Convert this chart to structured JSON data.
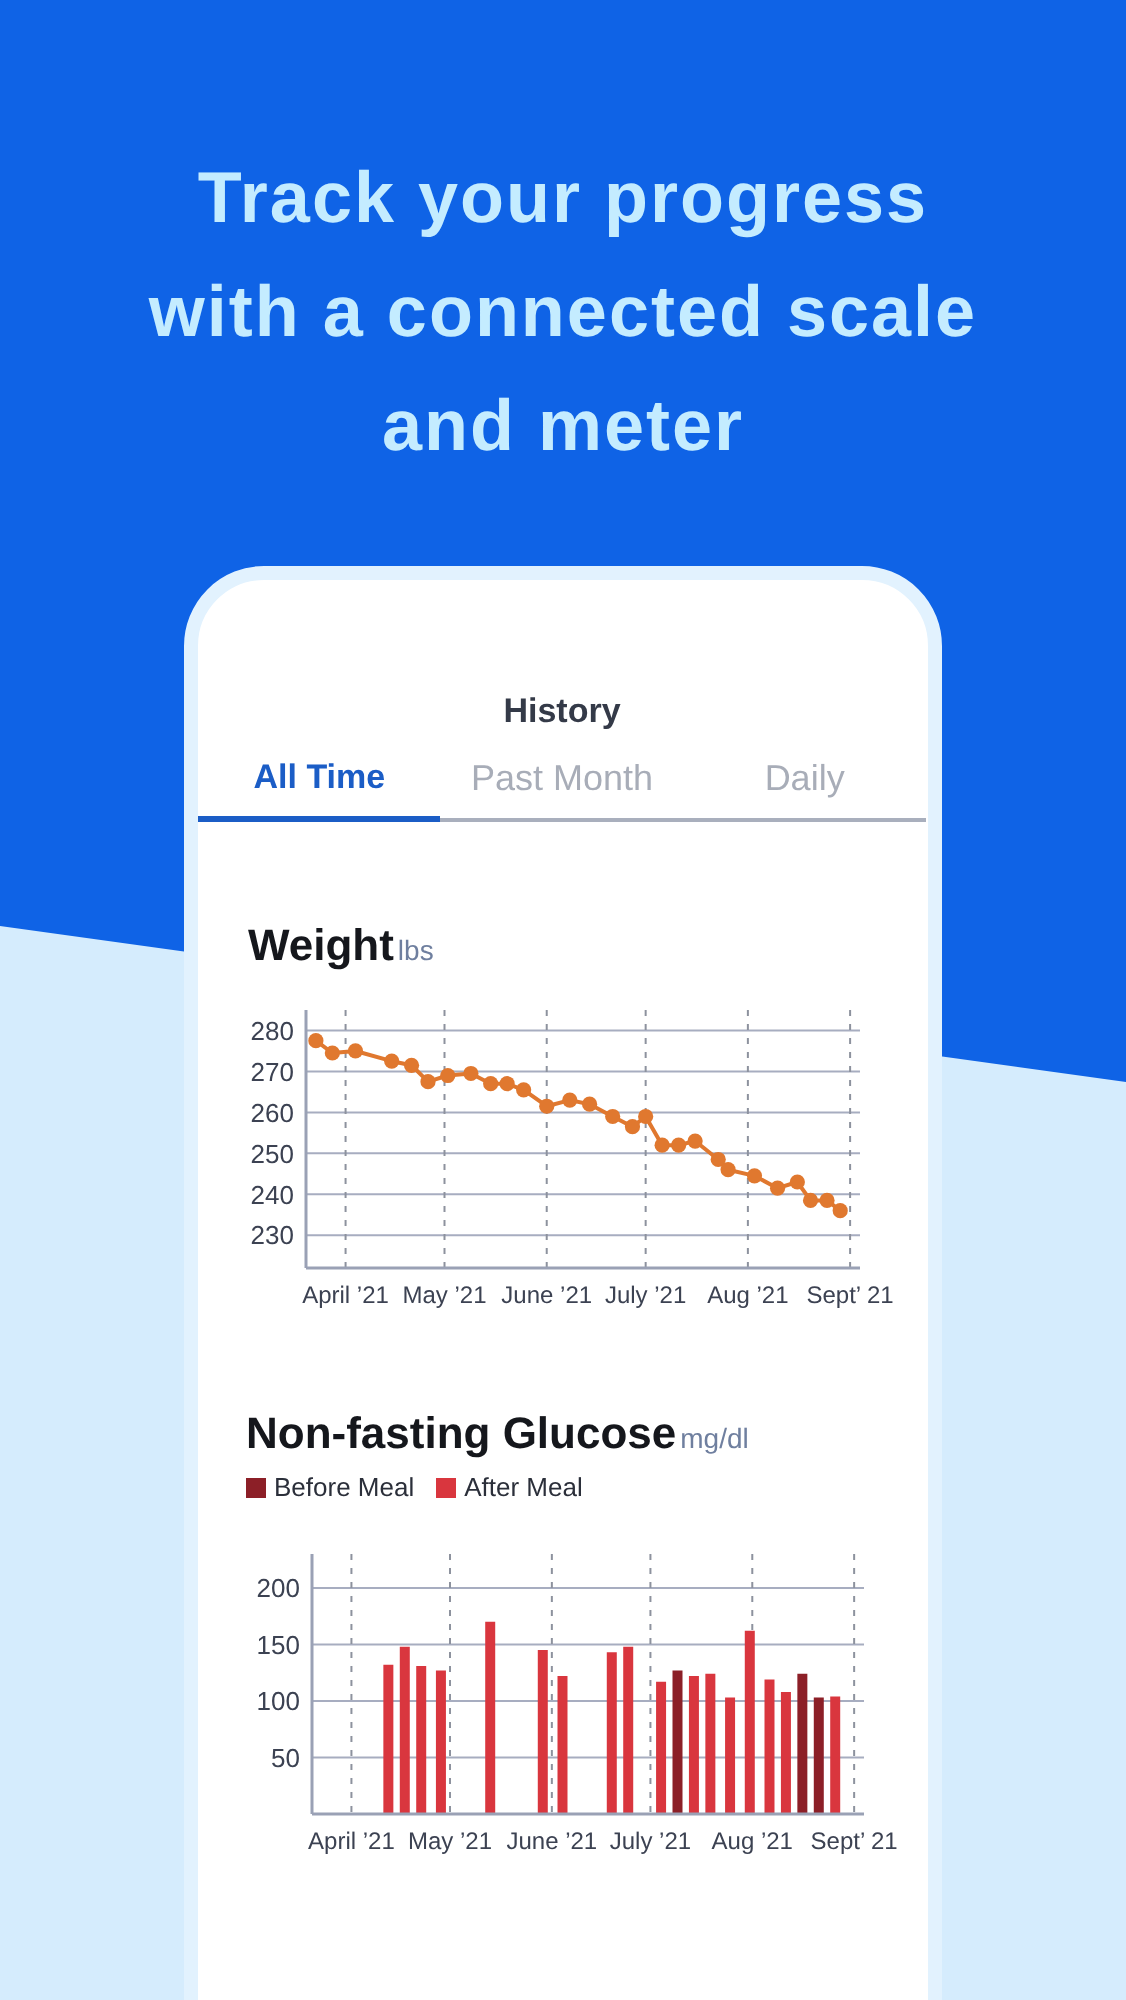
{
  "chart_data": [
    {
      "type": "line",
      "title": "Weight",
      "ylabel": "lbs",
      "annotations": [
        "Track your progress with a connected scale and meter",
        "History",
        "All Time",
        "Past Month",
        "Daily"
      ],
      "x": [
        "2021-03-23",
        "2021-03-28",
        "2021-04-04",
        "2021-04-15",
        "2021-04-21",
        "2021-04-26",
        "2021-05-02",
        "2021-05-09",
        "2021-05-15",
        "2021-05-20",
        "2021-05-25",
        "2021-06-01",
        "2021-06-08",
        "2021-06-14",
        "2021-06-21",
        "2021-06-27",
        "2021-07-01",
        "2021-07-06",
        "2021-07-11",
        "2021-07-16",
        "2021-07-23",
        "2021-07-26",
        "2021-08-03",
        "2021-08-10",
        "2021-08-16",
        "2021-08-20",
        "2021-08-25",
        "2021-08-29"
      ],
      "series": [
        {
          "color": "#e0782f",
          "values": [
            277.5,
            274.5,
            275,
            272.5,
            271.5,
            267.5,
            269,
            269.5,
            267,
            267,
            265.5,
            261.5,
            263,
            262,
            259,
            256.5,
            259,
            252,
            252,
            253,
            248.5,
            246,
            244.5,
            241.5,
            243,
            238.5,
            238.5,
            236
          ]
        }
      ],
      "xlim": [
        "2021-03-20",
        "2021-09-04"
      ],
      "ylim": [
        222,
        285
      ],
      "xticks": [
        {
          "value": "2021-04-01",
          "label": "April ’21"
        },
        {
          "value": "2021-05-01",
          "label": "May ’21"
        },
        {
          "value": "2021-06-01",
          "label": "June ’21"
        },
        {
          "value": "2021-07-01",
          "label": "July ’21"
        },
        {
          "value": "2021-08-01",
          "label": "Aug ’21"
        },
        {
          "value": "2021-09-01",
          "label": "Sept’ 21"
        }
      ],
      "yticks": [
        230,
        240,
        250,
        260,
        270,
        280
      ],
      "grid": true,
      "marker": "circle",
      "line_style": "solid"
    },
    {
      "type": "bar",
      "title": "Non-fasting Glucose",
      "ylabel": "mg/dl",
      "x": [
        "2021-04-12",
        "2021-04-17",
        "2021-04-22",
        "2021-04-28",
        "2021-05-13",
        "2021-05-29",
        "2021-06-04",
        "2021-06-19",
        "2021-06-24",
        "2021-07-04",
        "2021-07-09",
        "2021-07-14",
        "2021-07-19",
        "2021-07-25",
        "2021-07-31",
        "2021-08-06",
        "2021-08-11",
        "2021-08-16",
        "2021-08-21",
        "2021-08-26"
      ],
      "series": [
        {
          "name": "Before Meal",
          "color": "#8c1f27",
          "values": [
            null,
            null,
            null,
            null,
            null,
            null,
            null,
            null,
            null,
            null,
            127,
            null,
            null,
            null,
            null,
            null,
            null,
            124,
            103,
            null
          ]
        },
        {
          "name": "After Meal",
          "color": "#d9363e",
          "values": [
            132,
            148,
            131,
            127,
            170,
            145,
            122,
            143,
            148,
            117,
            null,
            122,
            124,
            103,
            162,
            119,
            108,
            null,
            null,
            104
          ]
        }
      ],
      "xlim": [
        "2021-03-20",
        "2021-09-04"
      ],
      "ylim": [
        0,
        230
      ],
      "xticks": [
        {
          "value": "2021-04-01",
          "label": "April ’21"
        },
        {
          "value": "2021-05-01",
          "label": "May ’21"
        },
        {
          "value": "2021-06-01",
          "label": "June ’21"
        },
        {
          "value": "2021-07-01",
          "label": "July ’21"
        },
        {
          "value": "2021-08-01",
          "label": "Aug ’21"
        },
        {
          "value": "2021-09-01",
          "label": "Sept’ 21"
        }
      ],
      "yticks": [
        50,
        100,
        150,
        200
      ],
      "grid": true,
      "legend": "top left"
    }
  ]
}
